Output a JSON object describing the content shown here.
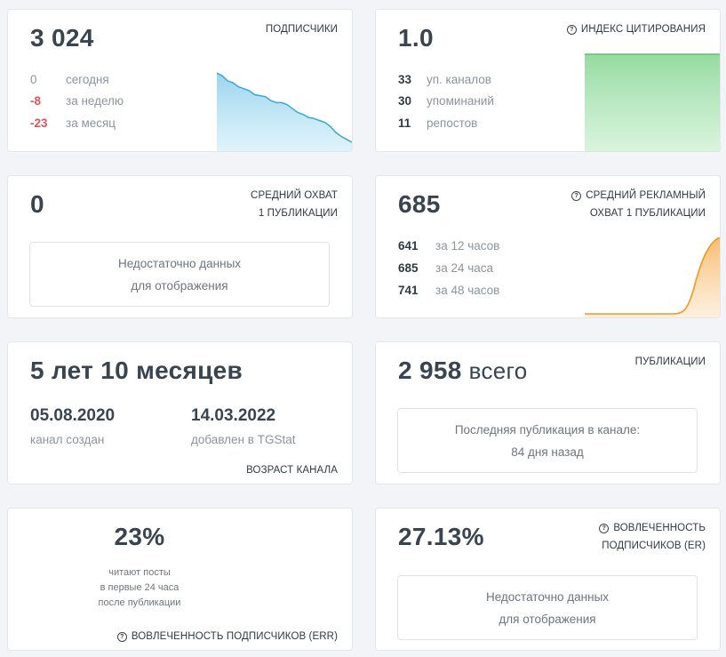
{
  "subscribers": {
    "value": "3 024",
    "label": "ПОДПИСЧИКИ",
    "rows": [
      {
        "num": "0",
        "text": "сегодня"
      },
      {
        "num": "-8",
        "text": "за неделю"
      },
      {
        "num": "-23",
        "text": "за месяц"
      }
    ],
    "trend": [
      100,
      97,
      92,
      90,
      86,
      84,
      82,
      78,
      77,
      76,
      72,
      70,
      70,
      68,
      64,
      60,
      58,
      55,
      54,
      52,
      50,
      46,
      40,
      36,
      33,
      30
    ]
  },
  "citation": {
    "value": "1.0",
    "label": "ИНДЕКС ЦИТИРОВАНИЯ",
    "rows": [
      {
        "num": "33",
        "text": "уп. каналов"
      },
      {
        "num": "30",
        "text": "упоминаний"
      },
      {
        "num": "11",
        "text": "репостов"
      }
    ]
  },
  "avg_reach": {
    "value": "0",
    "label_line1": "СРЕДНИЙ ОХВАТ",
    "label_line2": "1 ПУБЛИКАЦИИ",
    "empty_line1": "Недостаточно данных",
    "empty_line2": "для отображения"
  },
  "ad_reach": {
    "value": "685",
    "label_line1": "СРЕДНИЙ РЕКЛАМНЫЙ",
    "label_line2": "ОХВАТ 1 ПУБЛИКАЦИИ",
    "rows": [
      {
        "num": "641",
        "text": "за 12 часов"
      },
      {
        "num": "685",
        "text": "за 24 часа"
      },
      {
        "num": "741",
        "text": "за 48 часов"
      }
    ]
  },
  "age": {
    "value": "5 лет 10 месяцев",
    "created_date": "05.08.2020",
    "created_label": "канал создан",
    "added_date": "14.03.2022",
    "added_label": "добавлен в TGStat",
    "label": "ВОЗРАСТ КАНАЛА"
  },
  "publications": {
    "value": "2 958",
    "suffix": "всего",
    "label": "ПУБЛИКАЦИИ",
    "last_line1": "Последняя публикация в канале:",
    "last_line2": "84 дня назад"
  },
  "err": {
    "value": "23%",
    "desc_line1": "читают посты",
    "desc_line2": "в первые 24 часа",
    "desc_line3": "после публикации",
    "label": "ВОВЛЕЧЕННОСТЬ ПОДПИСЧИКОВ (ERR)"
  },
  "er": {
    "value": "27.13%",
    "label_line1": "ВОВЛЕЧЕННОСТЬ",
    "label_line2": "ПОДПИСЧИКОВ (ER)",
    "empty_line1": "Недостаточно данных",
    "empty_line2": "для отображения"
  },
  "colors": {
    "negative": "#e0545a",
    "trend_blue": "#3aa8d8",
    "trend_green": "#5cc26e",
    "trend_orange": "#f29a1f"
  }
}
